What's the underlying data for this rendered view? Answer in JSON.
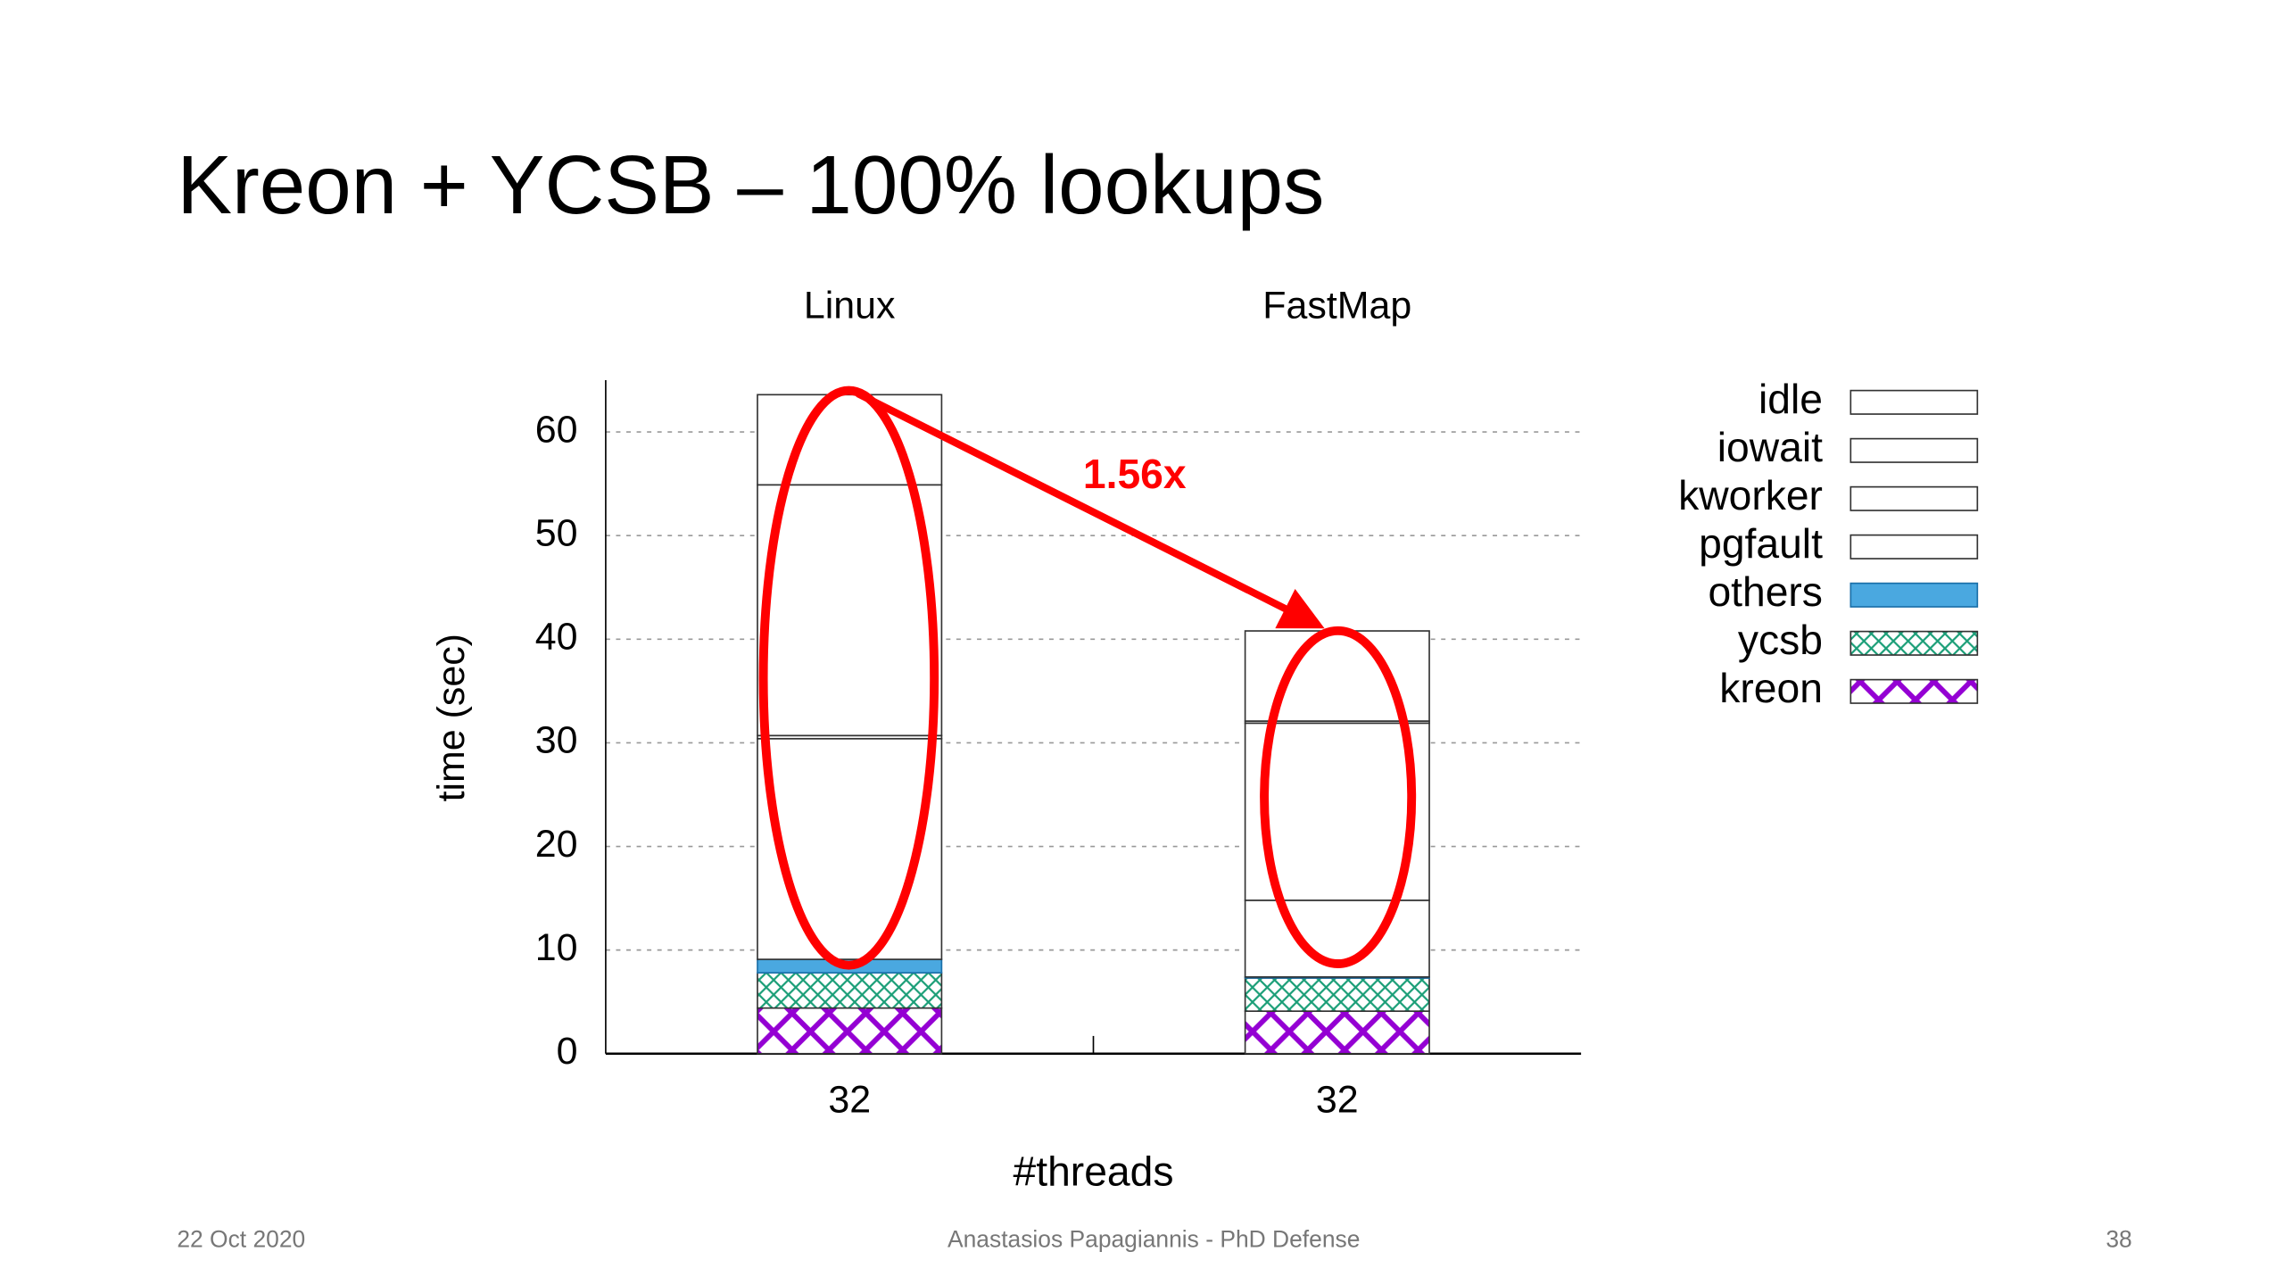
{
  "chart_data": {
    "type": "stacked-bar",
    "title": "Kreon + YCSB – 100% lookups",
    "groups": [
      "Linux",
      "FastMap"
    ],
    "categories": [
      "32",
      "32"
    ],
    "x_label": "#threads",
    "y_label": "time (sec)",
    "annotation": "1.56x",
    "series": [
      {
        "name": "kreon",
        "color": "#9400d3",
        "pattern": "cross",
        "values": [
          4.4,
          4.1
        ]
      },
      {
        "name": "ycsb",
        "color": "#1a9e77",
        "pattern": "cross",
        "values": [
          3.4,
          3.2
        ]
      },
      {
        "name": "others",
        "color": "#4aa8e0",
        "pattern": "solid",
        "values": [
          1.3,
          0.1
        ]
      },
      {
        "name": "pgfault",
        "color": "#ffffff",
        "pattern": "none",
        "values": [
          21.3,
          7.4
        ]
      },
      {
        "name": "kworker",
        "color": "#ffffff",
        "pattern": "none",
        "values": [
          0.3,
          17.1
        ]
      },
      {
        "name": "iowait",
        "color": "#ffffff",
        "pattern": "none",
        "values": [
          24.2,
          0.2
        ]
      },
      {
        "name": "idle",
        "color": "#ffffff",
        "pattern": "none",
        "values": [
          8.7,
          8.7
        ]
      }
    ],
    "ylim": [
      0,
      65
    ],
    "yticks": [
      0,
      10,
      20,
      30,
      40,
      50,
      60
    ],
    "grid": true,
    "legend": "right"
  },
  "footer": {
    "date": "22 Oct 2020",
    "presenter": "Anastasios Papagiannis - PhD Defense",
    "page": "38"
  }
}
